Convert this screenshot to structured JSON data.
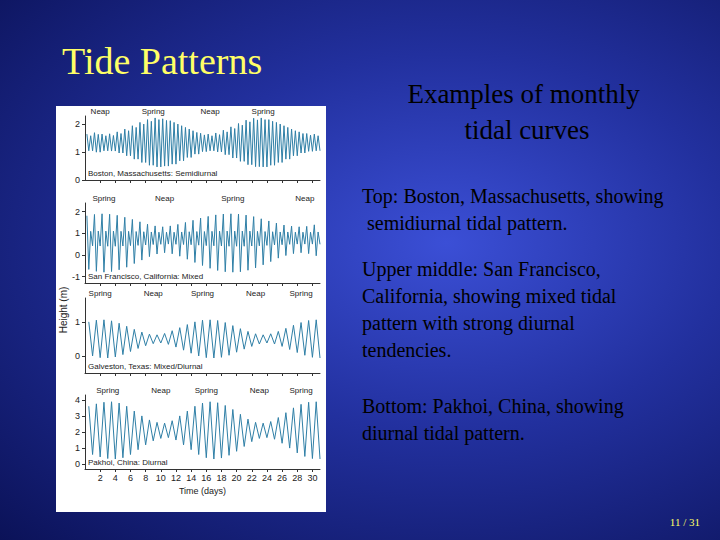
{
  "slide": {
    "title": "Tide Patterns",
    "heading": "Examples of monthly tidal curves",
    "captions": [
      "Top: Boston, Massachusetts, showing semidiurnal tidal pattern.",
      "Upper middle: San Francisco, California, showing mixed tidal pattern with strong diurnal tendencies.",
      "Bottom: Pakhoi, China, showing diurnal tidal pattern."
    ],
    "page": "11 / 31"
  },
  "figure": {
    "ylabel": "Height (m)"
  },
  "chart_data": [
    {
      "type": "line",
      "title": "Boston, Massachusetts: Semidiurnal",
      "color": "#2f7fa6",
      "xlim": [
        0,
        31
      ],
      "xticks": [
        2,
        4,
        6,
        8,
        10,
        12,
        14,
        16,
        18,
        20,
        22,
        24,
        26,
        28,
        30
      ],
      "ylim": [
        0,
        2.3
      ],
      "yticks": [
        0,
        1,
        2
      ],
      "tick_labels": "y",
      "annotations": [
        {
          "text": "Neap",
          "x": 2
        },
        {
          "text": "Spring",
          "x": 9
        },
        {
          "text": "Neap",
          "x": 16.5
        },
        {
          "text": "Spring",
          "x": 23.5
        }
      ],
      "x": [
        0.25,
        0.5,
        0.75,
        1,
        1.25,
        1.5,
        1.75,
        2,
        2.25,
        2.5,
        2.75,
        3,
        3.25,
        3.5,
        3.75,
        4,
        4.25,
        4.5,
        4.75,
        5,
        5.25,
        5.5,
        5.75,
        6,
        6.25,
        6.5,
        6.75,
        7,
        7.25,
        7.5,
        7.75,
        8,
        8.25,
        8.5,
        8.75,
        9,
        9.25,
        9.5,
        9.75,
        10,
        10.25,
        10.5,
        10.75,
        11,
        11.25,
        11.5,
        11.75,
        12,
        12.25,
        12.5,
        12.75,
        13,
        13.25,
        13.5,
        13.75,
        14,
        14.25,
        14.5,
        14.75,
        15,
        15.25,
        15.5,
        15.75,
        16,
        16.25,
        16.5,
        16.75,
        17,
        17.25,
        17.5,
        17.75,
        18,
        18.25,
        18.5,
        18.75,
        19,
        19.25,
        19.5,
        19.75,
        20,
        20.25,
        20.5,
        20.75,
        21,
        21.25,
        21.5,
        21.75,
        22,
        22.25,
        22.5,
        22.75,
        23,
        23.25,
        23.5,
        23.75,
        24,
        24.25,
        24.5,
        24.75,
        25,
        25.25,
        25.5,
        25.75,
        26,
        26.25,
        26.5,
        26.75,
        27,
        27.25,
        27.5,
        27.75,
        28,
        28.25,
        28.5,
        28.75,
        29,
        29.25,
        29.5,
        29.75,
        30,
        30.25,
        30.5,
        30.75,
        31
      ],
      "values": [
        1.65,
        1.05,
        1.59,
        1.05,
        1.7,
        1.0,
        1.64,
        1.0,
        1.65,
        1.05,
        1.59,
        1.05,
        1.66,
        1.04,
        1.6,
        1.04,
        1.73,
        0.97,
        1.67,
        0.97,
        1.83,
        0.87,
        1.77,
        0.87,
        1.95,
        0.75,
        1.89,
        0.75,
        2.07,
        0.63,
        2.01,
        0.63,
        2.17,
        0.53,
        2.11,
        0.53,
        2.23,
        0.47,
        2.17,
        0.47,
        2.2,
        0.5,
        2.14,
        0.5,
        2.13,
        0.57,
        2.07,
        0.57,
        2.01,
        0.69,
        1.95,
        0.69,
        1.89,
        0.81,
        1.83,
        0.81,
        1.77,
        0.93,
        1.71,
        0.93,
        1.68,
        1.02,
        1.62,
        1.02,
        1.65,
        1.05,
        1.59,
        1.05,
        1.69,
        1.01,
        1.63,
        1.01,
        1.79,
        0.91,
        1.73,
        0.91,
        1.91,
        0.79,
        1.85,
        0.79,
        2.03,
        0.67,
        1.97,
        0.67,
        2.15,
        0.55,
        2.09,
        0.55,
        2.22,
        0.48,
        2.16,
        0.48,
        2.23,
        0.47,
        2.17,
        0.47,
        2.17,
        0.53,
        2.11,
        0.53,
        2.07,
        0.63,
        2.01,
        0.63,
        1.95,
        0.75,
        1.89,
        0.75,
        1.83,
        0.87,
        1.77,
        0.87,
        1.73,
        0.97,
        1.67,
        0.97,
        1.67,
        1.03,
        1.61,
        1.03,
        1.65,
        1.05,
        1.59,
        1.05
      ]
    },
    {
      "type": "line",
      "title": "San Francisco, California: Mixed",
      "color": "#2f7fa6",
      "xlim": [
        0,
        31
      ],
      "xticks": [
        2,
        4,
        6,
        8,
        10,
        12,
        14,
        16,
        18,
        20,
        22,
        24,
        26,
        28,
        30
      ],
      "ylim": [
        -1.3,
        2.4
      ],
      "yticks": [
        -1,
        0,
        1,
        2
      ],
      "tick_labels": "y",
      "annotations": [
        {
          "text": "Spring",
          "x": 2.5
        },
        {
          "text": "Neap",
          "x": 10.5
        },
        {
          "text": "Spring",
          "x": 19.5
        },
        {
          "text": "Neap",
          "x": 29
        }
      ],
      "x": [
        0.25,
        0.5,
        0.75,
        1,
        1.25,
        1.5,
        1.75,
        2,
        2.25,
        2.5,
        2.75,
        3,
        3.25,
        3.5,
        3.75,
        4,
        4.25,
        4.5,
        4.75,
        5,
        5.25,
        5.5,
        5.75,
        6,
        6.25,
        6.5,
        6.75,
        7,
        7.25,
        7.5,
        7.75,
        8,
        8.25,
        8.5,
        8.75,
        9,
        9.25,
        9.5,
        9.75,
        10,
        10.25,
        10.5,
        10.75,
        11,
        11.25,
        11.5,
        11.75,
        12,
        12.25,
        12.5,
        12.75,
        13,
        13.25,
        13.5,
        13.75,
        14,
        14.25,
        14.5,
        14.75,
        15,
        15.25,
        15.5,
        15.75,
        16,
        16.25,
        16.5,
        16.75,
        17,
        17.25,
        17.5,
        17.75,
        18,
        18.25,
        18.5,
        18.75,
        19,
        19.25,
        19.5,
        19.75,
        20,
        20.25,
        20.5,
        20.75,
        21,
        21.25,
        21.5,
        21.75,
        22,
        22.25,
        22.5,
        22.75,
        23,
        23.25,
        23.5,
        23.75,
        24,
        24.25,
        24.5,
        24.75,
        25,
        25.25,
        25.5,
        25.75,
        26,
        26.25,
        26.5,
        26.75,
        27,
        27.25,
        27.5,
        27.75,
        28,
        28.25,
        28.5,
        28.75,
        29,
        29.25,
        29.5,
        29.75,
        30,
        30.25,
        30.5,
        30.75,
        31
      ],
      "values": [
        1.81,
        -0.67,
        1.09,
        0.42,
        1.87,
        -0.76,
        1.1,
        0.41,
        1.9,
        -0.8,
        1.1,
        0.4,
        1.88,
        -0.77,
        1.1,
        0.4,
        1.83,
        -0.69,
        1.09,
        0.41,
        1.74,
        -0.57,
        1.09,
        0.43,
        1.64,
        -0.4,
        1.08,
        0.44,
        1.53,
        -0.24,
        1.07,
        0.46,
        1.42,
        -0.08,
        1.06,
        0.48,
        1.34,
        0.04,
        1.05,
        0.49,
        1.3,
        0.1,
        1.05,
        0.5,
        1.34,
        0.05,
        1.05,
        0.49,
        1.41,
        -0.06,
        1.06,
        0.48,
        1.5,
        -0.2,
        1.07,
        0.47,
        1.6,
        -0.35,
        1.08,
        0.45,
        1.7,
        -0.49,
        1.08,
        0.43,
        1.78,
        -0.62,
        1.09,
        0.42,
        1.85,
        -0.72,
        1.1,
        0.41,
        1.89,
        -0.78,
        1.1,
        0.4,
        1.9,
        -0.8,
        1.1,
        0.4,
        1.89,
        -0.78,
        1.1,
        0.4,
        1.84,
        -0.71,
        1.1,
        0.41,
        1.77,
        -0.6,
        1.09,
        0.42,
        1.67,
        -0.46,
        1.08,
        0.44,
        1.57,
        -0.31,
        1.07,
        0.46,
        1.47,
        -0.15,
        1.06,
        0.47,
        1.38,
        -0.03,
        1.06,
        0.49,
        1.33,
        0.06,
        1.05,
        0.5,
        1.3,
        0.1,
        1.05,
        0.5,
        1.32,
        0.06,
        1.05,
        0.5,
        1.39,
        -0.04,
        1.06,
        0.49
      ]
    },
    {
      "type": "line",
      "title": "Galveston, Texas: Mixed/Diurnal",
      "color": "#2f7fa6",
      "xlim": [
        0,
        31
      ],
      "xticks": [
        2,
        4,
        6,
        8,
        10,
        12,
        14,
        16,
        18,
        20,
        22,
        24,
        26,
        28,
        30
      ],
      "ylim": [
        -0.5,
        1.7
      ],
      "yticks": [
        0,
        1
      ],
      "tick_labels": "y",
      "annotations": [
        {
          "text": "Spring",
          "x": 2
        },
        {
          "text": "Neap",
          "x": 9
        },
        {
          "text": "Spring",
          "x": 15.5
        },
        {
          "text": "Neap",
          "x": 22.5
        },
        {
          "text": "Spring",
          "x": 28.5
        }
      ],
      "x": [
        0.5,
        1,
        1.5,
        2,
        2.5,
        3,
        3.5,
        4,
        4.5,
        5,
        5.5,
        6,
        6.5,
        7,
        7.5,
        8,
        8.5,
        9,
        9.5,
        10,
        10.5,
        11,
        11.5,
        12,
        12.5,
        13,
        13.5,
        14,
        14.5,
        15,
        15.5,
        16,
        16.5,
        17,
        17.5,
        18,
        18.5,
        19,
        19.5,
        20,
        20.5,
        21,
        21.5,
        22,
        22.5,
        23,
        23.5,
        24,
        24.5,
        25,
        25.5,
        26,
        26.5,
        27,
        27.5,
        28,
        28.5,
        29,
        29.5,
        30,
        30.5,
        31
      ],
      "values": [
        1.0,
        0.0,
        1.05,
        -0.05,
        1.06,
        -0.06,
        1.03,
        -0.03,
        0.96,
        0.04,
        0.87,
        0.13,
        0.78,
        0.22,
        0.7,
        0.3,
        0.64,
        0.36,
        0.62,
        0.38,
        0.66,
        0.34,
        0.74,
        0.26,
        0.83,
        0.17,
        0.92,
        0.08,
        1.0,
        0.0,
        1.05,
        -0.05,
        1.06,
        -0.06,
        1.04,
        -0.04,
        0.98,
        0.02,
        0.89,
        0.11,
        0.8,
        0.2,
        0.72,
        0.28,
        0.65,
        0.35,
        0.62,
        0.38,
        0.65,
        0.35,
        0.72,
        0.28,
        0.81,
        0.19,
        0.9,
        0.1,
        0.98,
        0.02,
        1.04,
        -0.04,
        1.06,
        -0.06
      ]
    },
    {
      "type": "line",
      "title": "Pakhoi, China: Diurnal",
      "color": "#2f7fa6",
      "xlabel": "Time (days)",
      "xlim": [
        0,
        31
      ],
      "xticks": [
        2,
        4,
        6,
        8,
        10,
        12,
        14,
        16,
        18,
        20,
        22,
        24,
        26,
        28,
        30
      ],
      "ylim": [
        -0.3,
        4.3
      ],
      "yticks": [
        0,
        1,
        2,
        3,
        4
      ],
      "annotations": [
        {
          "text": "Spring",
          "x": 3
        },
        {
          "text": "Neap",
          "x": 10
        },
        {
          "text": "Spring",
          "x": 16
        },
        {
          "text": "Neap",
          "x": 23
        },
        {
          "text": "Spring",
          "x": 28.5
        }
      ],
      "x": [
        0.5,
        1,
        1.5,
        2,
        2.5,
        3,
        3.5,
        4,
        4.5,
        5,
        5.5,
        6,
        6.5,
        7,
        7.5,
        8,
        8.5,
        9,
        9.5,
        10,
        10.5,
        11,
        11.5,
        12,
        12.5,
        13,
        13.5,
        14,
        14.5,
        15,
        15.5,
        16,
        16.5,
        17,
        17.5,
        18,
        18.5,
        19,
        19.5,
        20,
        20.5,
        21,
        21.5,
        22,
        22.5,
        23,
        23.5,
        24,
        24.5,
        25,
        25.5,
        26,
        26.5,
        27,
        27.5,
        28,
        28.5,
        29,
        29.5,
        30,
        30.5,
        31
      ],
      "values": [
        3.6,
        0.6,
        3.75,
        0.45,
        3.85,
        0.35,
        3.88,
        0.32,
        3.8,
        0.4,
        3.6,
        0.6,
        3.3,
        0.9,
        3.0,
        1.2,
        2.75,
        1.45,
        2.6,
        1.6,
        2.55,
        1.65,
        2.7,
        1.5,
        3.0,
        1.2,
        3.3,
        0.9,
        3.6,
        0.6,
        3.8,
        0.4,
        3.88,
        0.32,
        3.82,
        0.38,
        3.65,
        0.55,
        3.4,
        0.8,
        3.1,
        1.1,
        2.8,
        1.4,
        2.6,
        1.6,
        2.55,
        1.65,
        2.65,
        1.55,
        2.9,
        1.3,
        3.2,
        1.0,
        3.5,
        0.7,
        3.72,
        0.48,
        3.85,
        0.35,
        3.88,
        0.32
      ]
    }
  ]
}
